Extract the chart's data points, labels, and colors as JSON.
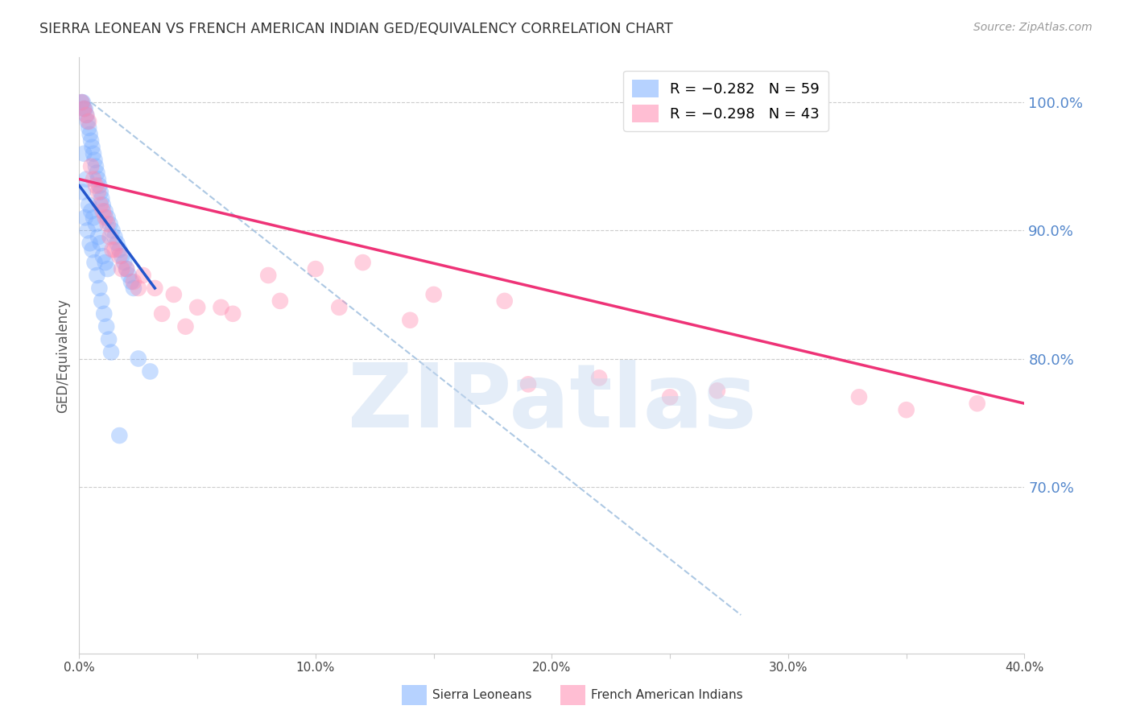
{
  "title": "SIERRA LEONEAN VS FRENCH AMERICAN INDIAN GED/EQUIVALENCY CORRELATION CHART",
  "source": "Source: ZipAtlas.com",
  "ylabel": "GED/Equivalency",
  "right_yticks": [
    100.0,
    90.0,
    80.0,
    70.0
  ],
  "right_ytick_labels": [
    "100.0%",
    "90.0%",
    "80.0%",
    "70.0%"
  ],
  "legend_labels": [
    "Sierra Leoneans",
    "French American Indians"
  ],
  "watermark": "ZIPatlas",
  "blue_scatter_x": [
    0.1,
    0.15,
    0.2,
    0.25,
    0.3,
    0.35,
    0.4,
    0.45,
    0.5,
    0.55,
    0.6,
    0.65,
    0.7,
    0.75,
    0.8,
    0.85,
    0.9,
    0.95,
    1.0,
    1.1,
    1.2,
    1.3,
    1.4,
    1.5,
    1.6,
    1.7,
    1.8,
    1.9,
    2.0,
    2.1,
    2.2,
    2.3,
    0.2,
    0.3,
    0.4,
    0.5,
    0.6,
    0.7,
    0.8,
    0.9,
    1.0,
    1.1,
    1.2,
    0.15,
    0.25,
    0.35,
    0.45,
    0.55,
    0.65,
    0.75,
    0.85,
    0.95,
    1.05,
    1.15,
    1.25,
    1.35,
    2.5,
    3.0,
    1.7
  ],
  "blue_scatter_y": [
    100.0,
    100.0,
    99.5,
    99.5,
    99.0,
    98.5,
    98.0,
    97.5,
    97.0,
    96.5,
    96.0,
    95.5,
    95.0,
    94.5,
    94.0,
    93.5,
    93.0,
    92.5,
    92.0,
    91.5,
    91.0,
    90.5,
    90.0,
    89.5,
    89.0,
    88.5,
    88.0,
    87.5,
    87.0,
    86.5,
    86.0,
    85.5,
    96.0,
    94.0,
    92.0,
    91.5,
    91.0,
    90.5,
    89.5,
    89.0,
    88.0,
    87.5,
    87.0,
    93.0,
    91.0,
    90.0,
    89.0,
    88.5,
    87.5,
    86.5,
    85.5,
    84.5,
    83.5,
    82.5,
    81.5,
    80.5,
    80.0,
    79.0,
    74.0
  ],
  "pink_scatter_x": [
    0.1,
    0.2,
    0.3,
    0.4,
    0.5,
    0.6,
    0.7,
    0.8,
    0.9,
    1.0,
    1.1,
    1.2,
    1.3,
    1.5,
    1.7,
    2.0,
    2.3,
    2.7,
    3.2,
    4.0,
    5.0,
    6.5,
    8.0,
    10.0,
    12.0,
    15.0,
    18.0,
    22.0,
    27.0,
    33.0,
    38.0,
    1.4,
    1.8,
    2.5,
    3.5,
    4.5,
    6.0,
    8.5,
    11.0,
    14.0,
    19.0,
    25.0,
    35.0
  ],
  "pink_scatter_y": [
    100.0,
    99.5,
    99.0,
    98.5,
    95.0,
    94.0,
    93.5,
    93.0,
    92.0,
    91.5,
    91.0,
    90.5,
    89.5,
    88.5,
    88.0,
    87.0,
    86.0,
    86.5,
    85.5,
    85.0,
    84.0,
    83.5,
    86.5,
    87.0,
    87.5,
    85.0,
    84.5,
    78.5,
    77.5,
    77.0,
    76.5,
    88.5,
    87.0,
    85.5,
    83.5,
    82.5,
    84.0,
    84.5,
    84.0,
    83.0,
    78.0,
    77.0,
    76.0
  ],
  "blue_line_x": [
    0.0,
    3.2
  ],
  "blue_line_y": [
    93.5,
    85.5
  ],
  "pink_line_x": [
    0.0,
    40.0
  ],
  "pink_line_y": [
    94.0,
    76.5
  ],
  "dash_line_x": [
    0.5,
    28.0
  ],
  "dash_line_y": [
    100.0,
    60.0
  ],
  "xlim": [
    0.0,
    40.0
  ],
  "ylim": [
    57.0,
    103.5
  ],
  "ygrid_lines": [
    70.0,
    80.0,
    90.0,
    100.0
  ],
  "xticks": [
    0,
    5,
    10,
    15,
    20,
    25,
    30,
    35,
    40
  ],
  "xtick_labels": [
    "0.0%",
    "",
    "10.0%",
    "",
    "20.0%",
    "",
    "30.0%",
    "",
    "40.0%"
  ],
  "bg_color": "#ffffff",
  "blue_color": "#7aadff",
  "pink_color": "#ff8ab0",
  "blue_line_color": "#2255cc",
  "pink_line_color": "#ee3377",
  "dash_line_color": "#99bbdd",
  "grid_color": "#cccccc",
  "right_label_color": "#5588cc",
  "title_color": "#333333"
}
